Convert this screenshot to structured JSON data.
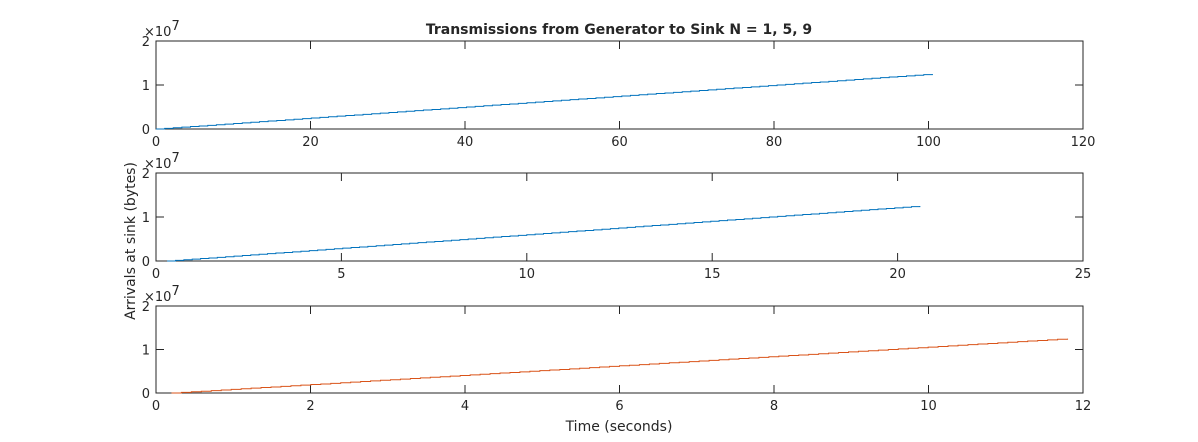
{
  "title": "Transmissions from Generator to Sink N = 1, 5, 9",
  "ylabel": "Arrivals at sink (bytes)",
  "xlabel": "Time (seconds)",
  "chart_data": [
    {
      "type": "line",
      "title": "Transmissions from Generator to Sink N = 1, 5, 9",
      "xlim": [
        0,
        120
      ],
      "ylim": [
        0,
        20000000
      ],
      "xticks": [
        "0",
        "20",
        "40",
        "60",
        "80",
        "100",
        "120"
      ],
      "yticks": [
        "0",
        "1",
        "2"
      ],
      "y_multiplier": "×10",
      "y_exponent": "7",
      "grid": false,
      "series": [
        {
          "color": "#0072BD",
          "x": [
            0,
            100.5
          ],
          "y": [
            0,
            12500000
          ]
        }
      ]
    },
    {
      "type": "line",
      "xlim": [
        0,
        25
      ],
      "ylim": [
        0,
        20000000
      ],
      "xticks": [
        "0",
        "5",
        "10",
        "15",
        "20",
        "25"
      ],
      "yticks": [
        "0",
        "1",
        "2"
      ],
      "y_multiplier": "×10",
      "y_exponent": "7",
      "grid": false,
      "series": [
        {
          "color": "#0072BD",
          "x": [
            0.3,
            20.6
          ],
          "y": [
            0,
            12500000
          ]
        }
      ]
    },
    {
      "type": "line",
      "xlim": [
        0,
        12
      ],
      "ylim": [
        0,
        20000000
      ],
      "xticks": [
        "0",
        "2",
        "4",
        "6",
        "8",
        "10",
        "12"
      ],
      "yticks": [
        "0",
        "1",
        "2"
      ],
      "y_multiplier": "×10",
      "y_exponent": "7",
      "grid": false,
      "series": [
        {
          "color": "#D95319",
          "x": [
            0.2,
            11.8
          ],
          "y": [
            0,
            12500000
          ]
        }
      ]
    }
  ]
}
